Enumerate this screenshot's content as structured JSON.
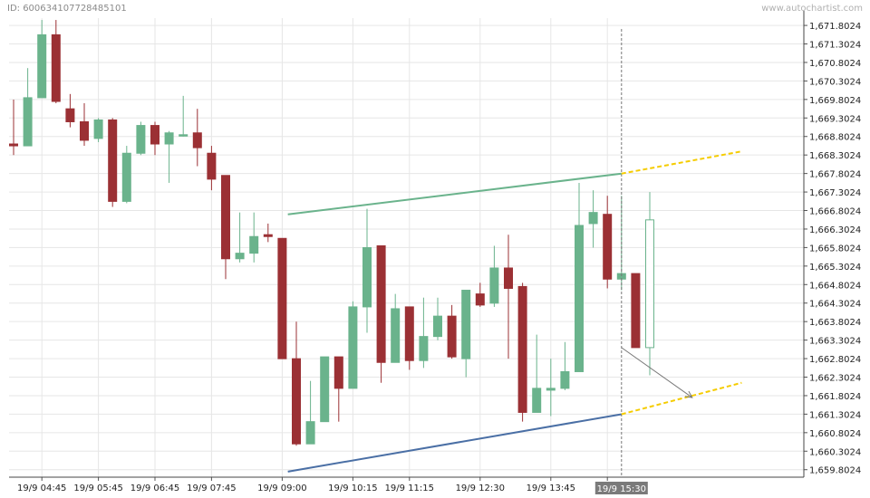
{
  "header": {
    "id_text": "ID: 600634107728485101",
    "watermark": "www.autochartist.com"
  },
  "chart_data": {
    "type": "candlestick",
    "title": "",
    "colors": {
      "bull": "#6ab38c",
      "bear": "#9b3034",
      "upper_line": "#6ab38c",
      "lower_line": "#4a6fa5",
      "forecast": "#f5cc00",
      "grid": "#e6e6e6",
      "current_label_bg": "#7a7a7a"
    },
    "ylim": [
      1659.6,
      1672.0
    ],
    "y_ticks": [
      "1,659.8024",
      "1,660.3024",
      "1,660.8024",
      "1,661.3024",
      "1,661.8024",
      "1,662.3024",
      "1,662.8024",
      "1,663.3024",
      "1,663.8024",
      "1,664.3024",
      "1,664.8024",
      "1,665.3024",
      "1,665.8024",
      "1,666.3024",
      "1,666.8024",
      "1,667.3024",
      "1,667.8024",
      "1,668.3024",
      "1,668.8024",
      "1,669.3024",
      "1,669.8024",
      "1,670.3024",
      "1,670.8024",
      "1,671.3024",
      "1,671.8024"
    ],
    "y_tick_values": [
      1659.8024,
      1660.3024,
      1660.8024,
      1661.3024,
      1661.8024,
      1662.3024,
      1662.8024,
      1663.3024,
      1663.8024,
      1664.3024,
      1664.8024,
      1665.3024,
      1665.8024,
      1666.3024,
      1666.8024,
      1667.3024,
      1667.8024,
      1668.3024,
      1668.8024,
      1669.3024,
      1669.8024,
      1670.3024,
      1670.8024,
      1671.3024,
      1671.8024
    ],
    "x_labels": [
      {
        "text": "19/9 04:45",
        "index": 2
      },
      {
        "text": "19/9 05:45",
        "index": 6
      },
      {
        "text": "19/9 06:45",
        "index": 10
      },
      {
        "text": "19/9 07:45",
        "index": 14
      },
      {
        "text": "19/9 09:00",
        "index": 19
      },
      {
        "text": "19/9 10:15",
        "index": 24
      },
      {
        "text": "19/9 11:15",
        "index": 28
      },
      {
        "text": "19/9 12:30",
        "index": 33
      },
      {
        "text": "19/9 13:45",
        "index": 38
      },
      {
        "text": "19/9",
        "index": 42
      }
    ],
    "current_time_label": "19/9 15:30",
    "current_index": 43,
    "candles": [
      {
        "o": 1668.6,
        "h": 1669.8,
        "l": 1668.3,
        "c": 1668.55
      },
      {
        "o": 1668.55,
        "h": 1670.65,
        "l": 1668.55,
        "c": 1669.85
      },
      {
        "o": 1669.85,
        "h": 1671.95,
        "l": 1669.85,
        "c": 1671.55
      },
      {
        "o": 1671.55,
        "h": 1671.95,
        "l": 1669.7,
        "c": 1669.75
      },
      {
        "o": 1669.55,
        "h": 1669.95,
        "l": 1669.05,
        "c": 1669.2
      },
      {
        "o": 1669.2,
        "h": 1669.7,
        "l": 1668.55,
        "c": 1668.7
      },
      {
        "o": 1668.75,
        "h": 1669.3,
        "l": 1668.65,
        "c": 1669.25
      },
      {
        "o": 1669.25,
        "h": 1669.3,
        "l": 1666.9,
        "c": 1667.05
      },
      {
        "o": 1667.05,
        "h": 1668.55,
        "l": 1667.0,
        "c": 1668.35
      },
      {
        "o": 1668.35,
        "h": 1669.2,
        "l": 1668.3,
        "c": 1669.1
      },
      {
        "o": 1669.1,
        "h": 1669.2,
        "l": 1668.3,
        "c": 1668.6
      },
      {
        "o": 1668.6,
        "h": 1668.95,
        "l": 1667.55,
        "c": 1668.9
      },
      {
        "o": 1668.85,
        "h": 1669.9,
        "l": 1668.8,
        "c": 1668.85
      },
      {
        "o": 1668.9,
        "h": 1669.55,
        "l": 1668.0,
        "c": 1668.5
      },
      {
        "o": 1668.35,
        "h": 1668.55,
        "l": 1667.35,
        "c": 1667.65
      },
      {
        "o": 1667.75,
        "h": 1667.75,
        "l": 1664.95,
        "c": 1665.5
      },
      {
        "o": 1665.5,
        "h": 1666.75,
        "l": 1665.4,
        "c": 1665.65
      },
      {
        "o": 1665.65,
        "h": 1666.75,
        "l": 1665.4,
        "c": 1666.1
      },
      {
        "o": 1666.15,
        "h": 1666.45,
        "l": 1665.95,
        "c": 1666.1
      },
      {
        "o": 1666.05,
        "h": 1666.05,
        "l": 1662.8,
        "c": 1662.8
      },
      {
        "o": 1662.8,
        "h": 1663.8,
        "l": 1660.45,
        "c": 1660.5
      },
      {
        "o": 1660.5,
        "h": 1662.2,
        "l": 1660.5,
        "c": 1661.1
      },
      {
        "o": 1661.1,
        "h": 1662.85,
        "l": 1661.1,
        "c": 1662.85
      },
      {
        "o": 1662.85,
        "h": 1662.85,
        "l": 1661.1,
        "c": 1662.0
      },
      {
        "o": 1662.0,
        "h": 1664.35,
        "l": 1662.0,
        "c": 1664.2
      },
      {
        "o": 1664.2,
        "h": 1666.85,
        "l": 1663.5,
        "c": 1665.8
      },
      {
        "o": 1665.85,
        "h": 1665.85,
        "l": 1662.15,
        "c": 1662.7
      },
      {
        "o": 1662.7,
        "h": 1664.55,
        "l": 1662.7,
        "c": 1664.15
      },
      {
        "o": 1664.2,
        "h": 1664.2,
        "l": 1662.5,
        "c": 1662.75
      },
      {
        "o": 1662.75,
        "h": 1664.45,
        "l": 1662.55,
        "c": 1663.4
      },
      {
        "o": 1663.4,
        "h": 1664.45,
        "l": 1663.3,
        "c": 1663.95
      },
      {
        "o": 1663.95,
        "h": 1664.25,
        "l": 1662.8,
        "c": 1662.85
      },
      {
        "o": 1662.8,
        "h": 1664.65,
        "l": 1662.3,
        "c": 1664.65
      },
      {
        "o": 1664.55,
        "h": 1664.85,
        "l": 1664.2,
        "c": 1664.25
      },
      {
        "o": 1664.3,
        "h": 1665.85,
        "l": 1664.2,
        "c": 1665.25
      },
      {
        "o": 1665.25,
        "h": 1666.15,
        "l": 1662.8,
        "c": 1664.7
      },
      {
        "o": 1664.75,
        "h": 1664.85,
        "l": 1661.1,
        "c": 1661.35
      },
      {
        "o": 1661.35,
        "h": 1663.45,
        "l": 1661.35,
        "c": 1662.0
      },
      {
        "o": 1661.95,
        "h": 1662.8,
        "l": 1661.25,
        "c": 1662.0
      },
      {
        "o": 1662.0,
        "h": 1663.25,
        "l": 1661.95,
        "c": 1662.45
      },
      {
        "o": 1662.45,
        "h": 1667.55,
        "l": 1662.45,
        "c": 1666.4
      },
      {
        "o": 1666.45,
        "h": 1667.35,
        "l": 1665.8,
        "c": 1666.75
      },
      {
        "o": 1666.7,
        "h": 1667.2,
        "l": 1664.7,
        "c": 1664.95
      },
      {
        "o": 1664.95,
        "h": 1667.2,
        "l": 1664.65,
        "c": 1665.1
      },
      {
        "o": 1665.1,
        "h": 1665.1,
        "l": 1663.1,
        "c": 1663.1
      },
      {
        "o": 1663.1,
        "h": 1667.3,
        "l": 1662.35,
        "c": 1666.55
      }
    ],
    "pattern": {
      "upper": {
        "from": {
          "index": 19.4,
          "y": 1666.7
        },
        "to": {
          "index": 43,
          "y": 1667.8
        }
      },
      "lower": {
        "from": {
          "index": 19.4,
          "y": 1659.75
        },
        "to": {
          "index": 43,
          "y": 1661.3
        }
      },
      "upper_forecast": {
        "from": {
          "index": 43,
          "y": 1667.8
        },
        "to": {
          "index": 51.5,
          "y": 1668.4
        }
      },
      "lower_forecast": {
        "from": {
          "index": 43,
          "y": 1661.3
        },
        "to": {
          "index": 51.5,
          "y": 1662.15
        }
      },
      "arrow": {
        "from": {
          "index": 43.0,
          "y": 1663.1
        },
        "to": {
          "index": 48.0,
          "y": 1661.75
        }
      }
    }
  }
}
